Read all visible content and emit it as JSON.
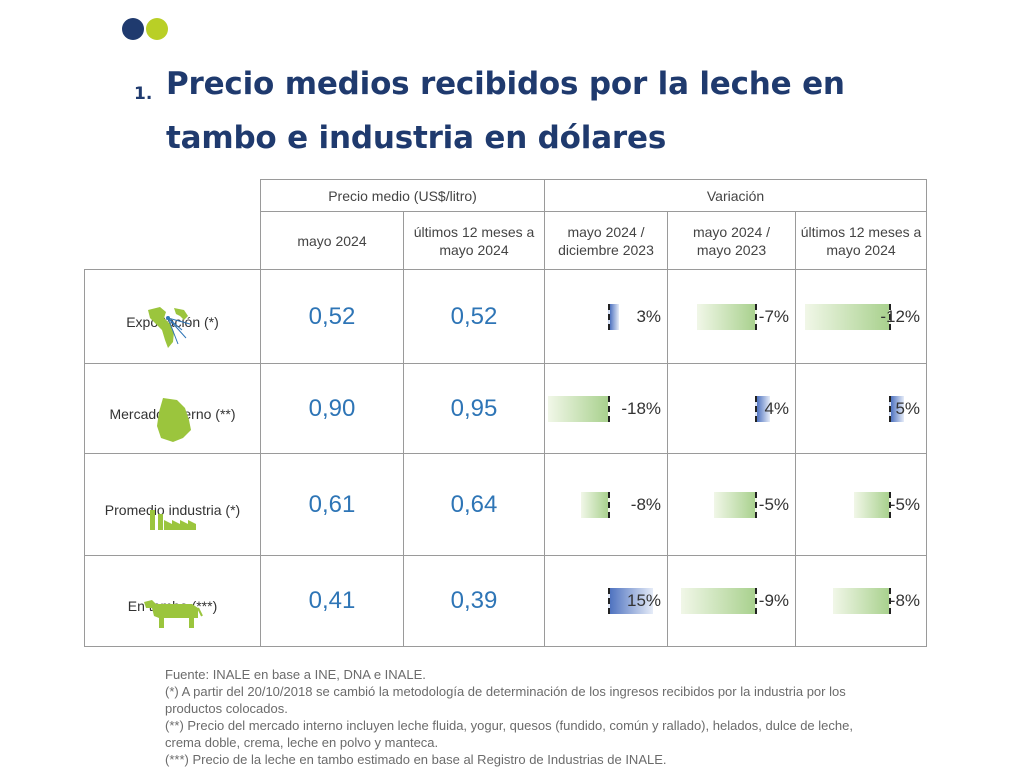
{
  "title": {
    "number": "1.",
    "line1": "Precio medios recibidos por la leche en",
    "line2": "tambo e industria en dólares"
  },
  "table": {
    "group_headers": {
      "price": "Precio medio (US$/litro)",
      "variation": "Variación"
    },
    "col_headers": {
      "c1": "mayo 2024",
      "c2": "últimos 12 meses a mayo 2024",
      "c3": "mayo 2024 / diciembre 2023",
      "c4": "mayo 2024 / mayo 2023",
      "c5": "últimos 12 meses a mayo 2024"
    },
    "rows": [
      {
        "label": "Exportación (*)",
        "icon": "world-map-icon",
        "p1": "0,52",
        "p2": "0,52",
        "v": [
          {
            "text": "3%",
            "value": 3
          },
          {
            "text": "-7%",
            "value": -7
          },
          {
            "text": "-12%",
            "value": -12
          }
        ]
      },
      {
        "label": "Mercado Interno (**)",
        "icon": "uruguay-map-icon",
        "p1": "0,90",
        "p2": "0,95",
        "v": [
          {
            "text": "-18%",
            "value": -18
          },
          {
            "text": "4%",
            "value": 4
          },
          {
            "text": "5%",
            "value": 5
          }
        ]
      },
      {
        "label": "Promedio industria (*)",
        "icon": "factory-icon",
        "p1": "0,61",
        "p2": "0,64",
        "v": [
          {
            "text": "-8%",
            "value": -8
          },
          {
            "text": "-5%",
            "value": -5
          },
          {
            "text": "-5%",
            "value": -5
          }
        ]
      },
      {
        "label": "En tambo (***)",
        "icon": "cow-icon",
        "p1": "0,41",
        "p2": "0,39",
        "v": [
          {
            "text": "15%",
            "value": 15
          },
          {
            "text": "-9%",
            "value": -9
          },
          {
            "text": "-8%",
            "value": -8
          }
        ]
      }
    ]
  },
  "notes": {
    "source": "Fuente: INALE en base a INE, DNA e INALE.",
    "n1": "(*) A partir del 20/10/2018 se cambió la metodología de determinación de los ingresos recibidos por la industria por los productos colocados.",
    "n2": "(**) Precio del mercado interno incluyen leche fluida, yogur, quesos (fundido, común y rallado), helados, dulce de leche, crema doble, crema, leche en polvo y manteca.",
    "n3": "(***) Precio de la leche en tambo estimado en base al Registro de Industrias de INALE."
  },
  "colors": {
    "title": "#1f3a6e",
    "accent_lime": "#b9cf26",
    "price_text": "#2e75b6",
    "icon_green": "#9bc53d"
  }
}
